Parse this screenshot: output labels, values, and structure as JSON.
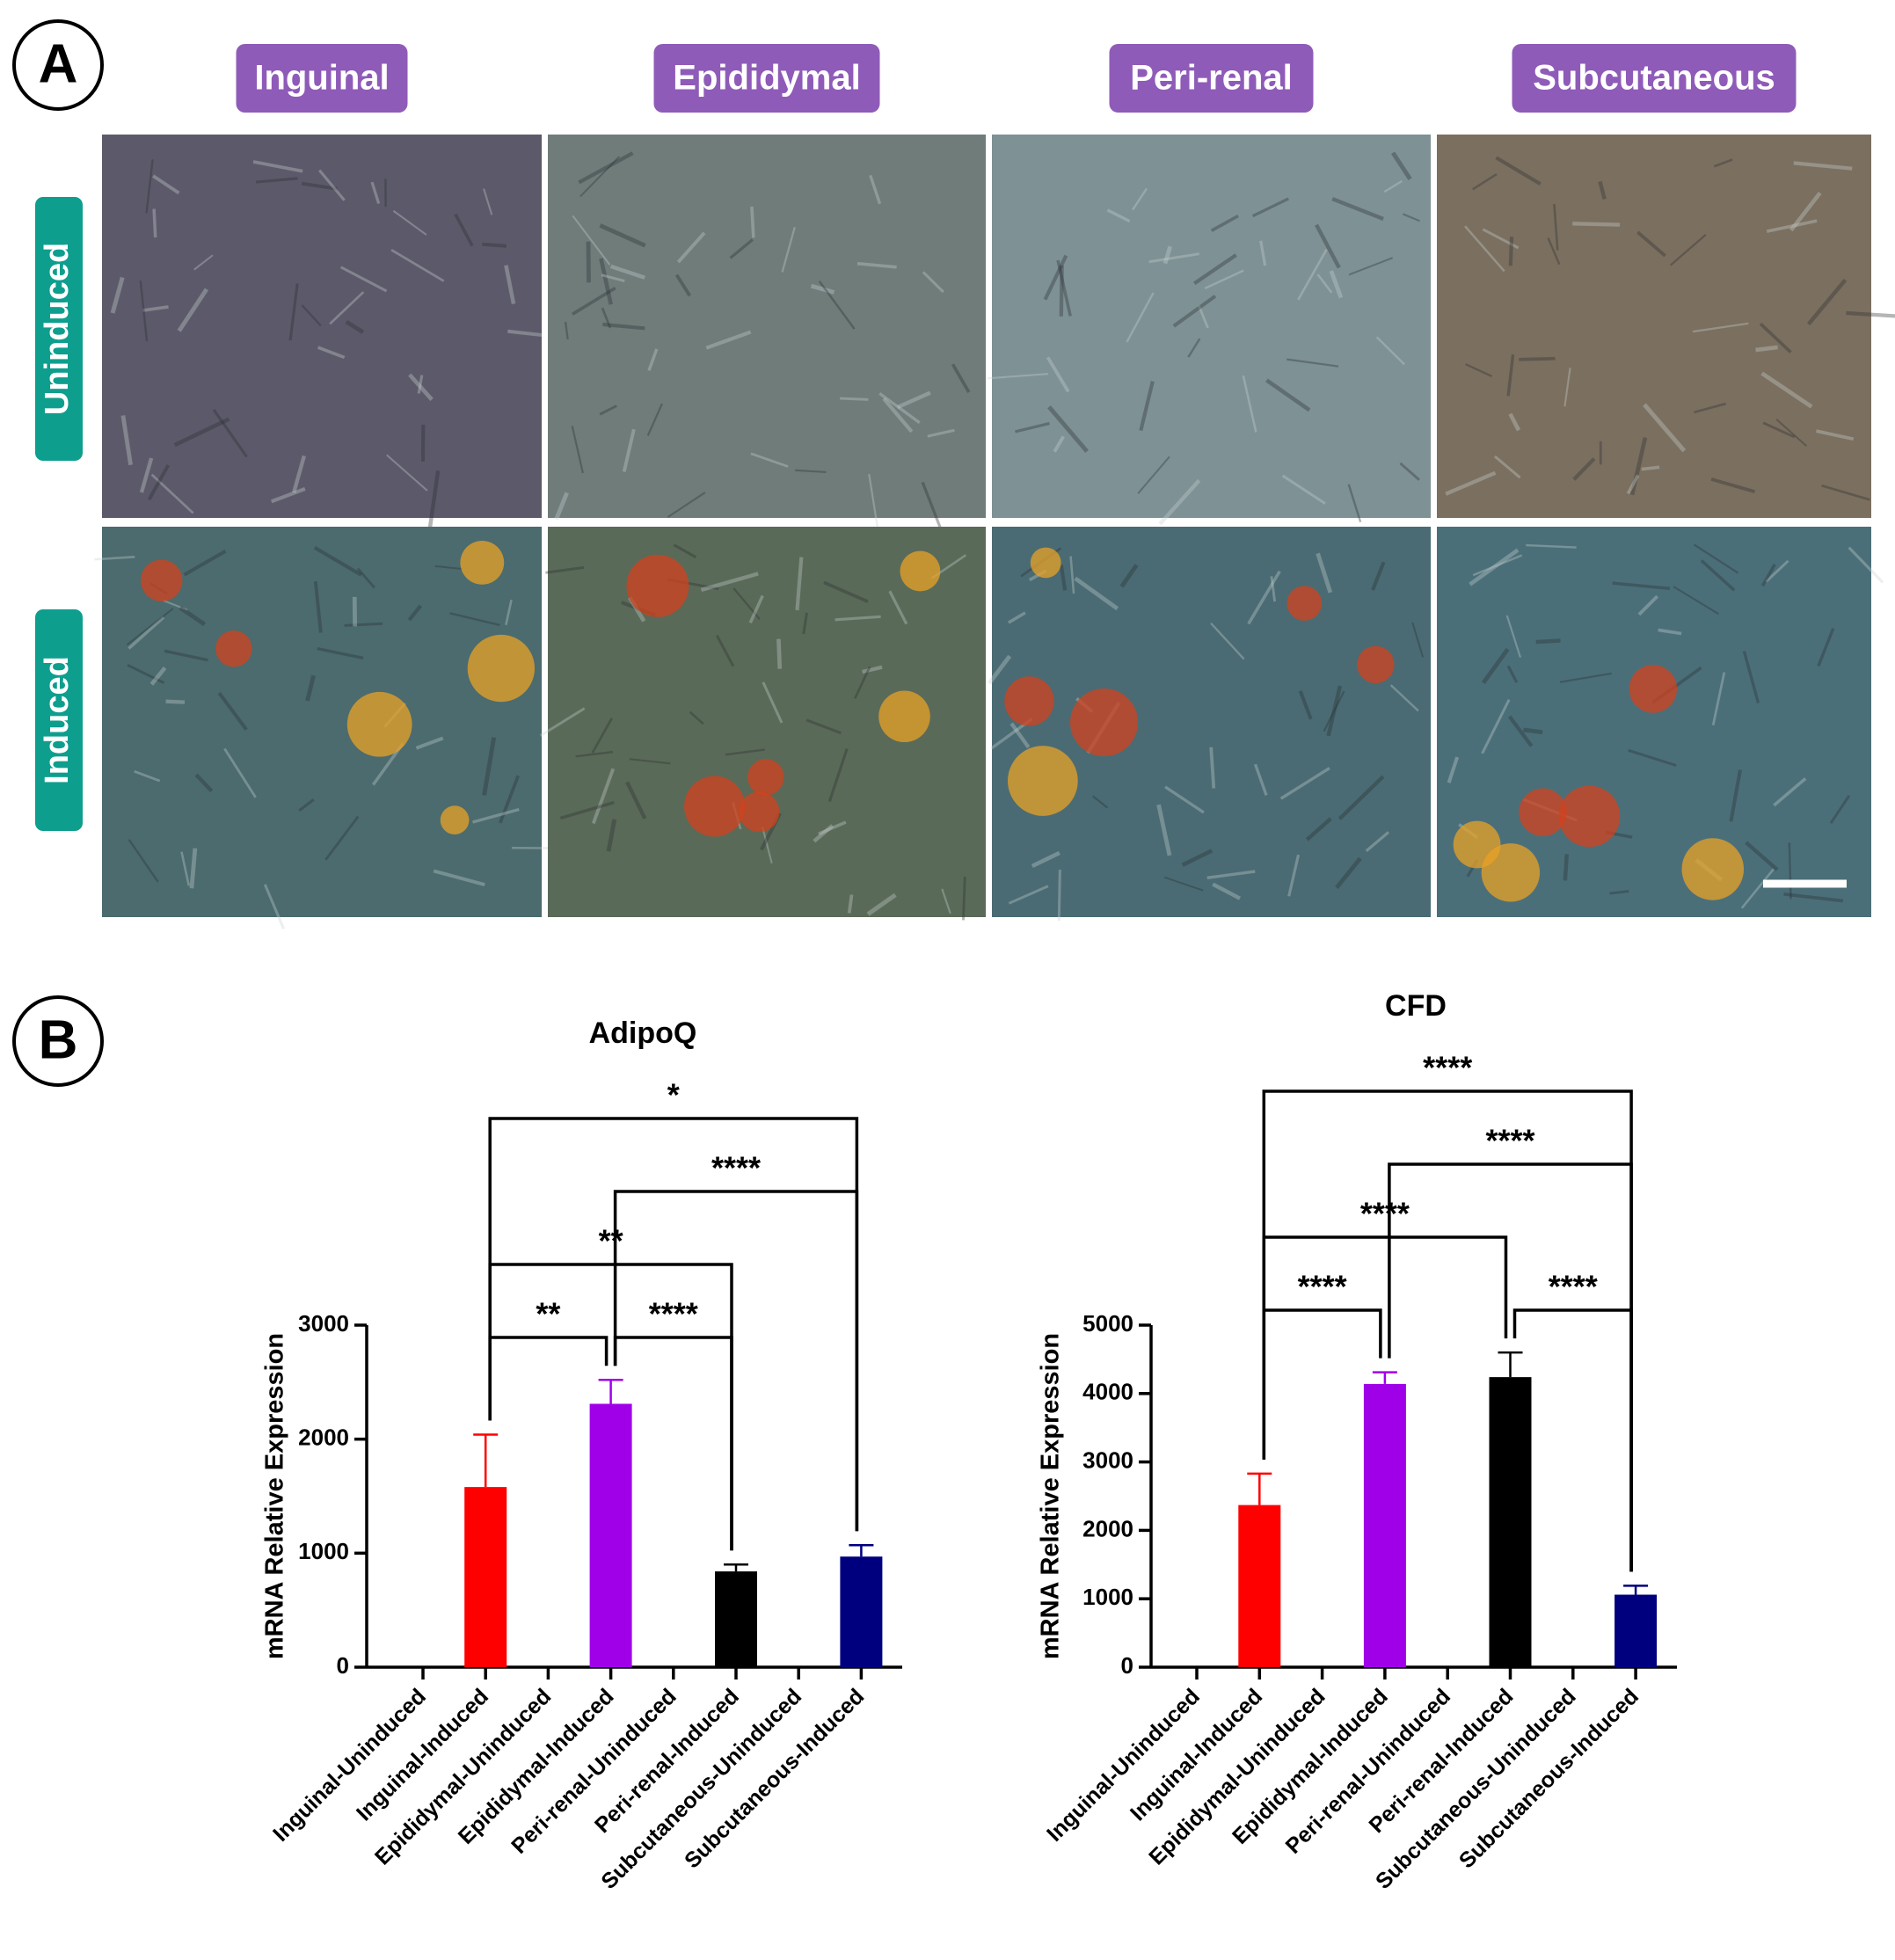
{
  "panel_a": {
    "label": "A",
    "columns": [
      "Inguinal",
      "Epididymal",
      "Peri-renal",
      "Subcutaneous"
    ],
    "rows": [
      "Uninduced",
      "Induced"
    ]
  },
  "panel_b": {
    "label": "B"
  },
  "chart_data": [
    {
      "type": "bar",
      "title": "AdipoQ",
      "y_label": "mRNA Relative Expression",
      "categories": [
        "Inguinal-Uninduced",
        "Inguinal-Induced",
        "Epididymal-Uninduced",
        "Epididymal-Induced",
        "Peri-renal-Uninduced",
        "Peri-renal-Induced",
        "Subcutaneous-Uninduced",
        "Subcutaneous-Induced"
      ],
      "values": [
        0,
        1580,
        0,
        2310,
        0,
        840,
        0,
        970
      ],
      "errors": [
        0,
        460,
        0,
        210,
        0,
        60,
        0,
        100
      ],
      "colors": [
        null,
        "#ff0000",
        null,
        "#a000e8",
        null,
        "#000000",
        null,
        "#00007f"
      ],
      "ylim": [
        0,
        3000
      ],
      "yticks": [
        0,
        1000,
        2000,
        3000
      ],
      "comparisons": [
        {
          "from": 1,
          "to": 3,
          "label": "**"
        },
        {
          "from": 3,
          "to": 5,
          "label": "****"
        },
        {
          "from": 1,
          "to": 5,
          "label": "**"
        },
        {
          "from": 3,
          "to": 7,
          "label": "****"
        },
        {
          "from": 1,
          "to": 7,
          "label": "*"
        }
      ]
    },
    {
      "type": "bar",
      "title": "CFD",
      "y_label": "mRNA Relative Expression",
      "categories": [
        "Inguinal-Uninduced",
        "Inguinal-Induced",
        "Epididymal-Uninduced",
        "Epididymal-Induced",
        "Peri-renal-Uninduced",
        "Peri-renal-Induced",
        "Subcutaneous-Uninduced",
        "Subcutaneous-Induced"
      ],
      "values": [
        0,
        2370,
        0,
        4140,
        0,
        4240,
        0,
        1060
      ],
      "errors": [
        0,
        460,
        0,
        170,
        0,
        360,
        0,
        130
      ],
      "colors": [
        null,
        "#ff0000",
        null,
        "#a000e8",
        null,
        "#000000",
        null,
        "#00007f"
      ],
      "ylim": [
        0,
        5000
      ],
      "yticks": [
        0,
        1000,
        2000,
        3000,
        4000,
        5000
      ],
      "comparisons": [
        {
          "from": 1,
          "to": 3,
          "label": "****"
        },
        {
          "from": 5,
          "to": 7,
          "label": "****"
        },
        {
          "from": 1,
          "to": 5,
          "label": "****"
        },
        {
          "from": 3,
          "to": 7,
          "label": "****"
        },
        {
          "from": 1,
          "to": 7,
          "label": "****"
        }
      ]
    }
  ]
}
